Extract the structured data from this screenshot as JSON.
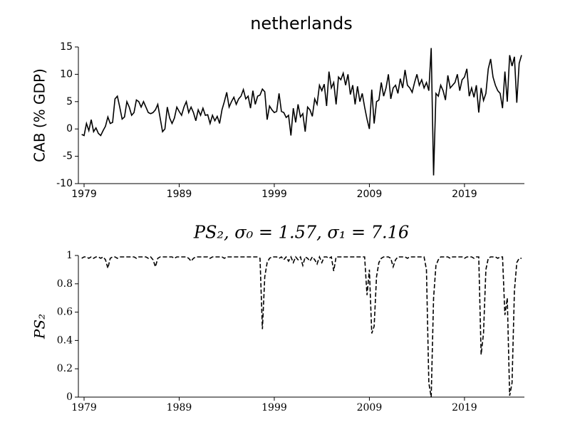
{
  "chart_data": [
    {
      "type": "line",
      "title": "netherlands",
      "y_label": "CAB (% GDP)",
      "xlim": [
        1978.4,
        2025.3
      ],
      "xticks": [
        1979,
        1989,
        1999,
        2009,
        2019
      ],
      "ylim": [
        -10,
        15
      ],
      "yticks": [
        -10,
        -5,
        0,
        5,
        10,
        15
      ],
      "grid": false,
      "x": [
        1978.75,
        1979,
        1979.25,
        1979.5,
        1979.75,
        1980,
        1980.25,
        1980.5,
        1980.75,
        1981,
        1981.25,
        1981.5,
        1981.75,
        1982,
        1982.25,
        1982.5,
        1982.75,
        1983,
        1983.25,
        1983.5,
        1983.75,
        1984,
        1984.25,
        1984.5,
        1984.75,
        1985,
        1985.25,
        1985.5,
        1985.75,
        1986,
        1986.25,
        1986.5,
        1986.75,
        1987,
        1987.25,
        1987.5,
        1987.75,
        1988,
        1988.25,
        1988.5,
        1988.75,
        1989,
        1989.25,
        1989.5,
        1989.75,
        1990,
        1990.25,
        1990.5,
        1990.75,
        1991,
        1991.25,
        1991.5,
        1991.75,
        1992,
        1992.25,
        1992.5,
        1992.75,
        1993,
        1993.25,
        1993.5,
        1993.75,
        1994,
        1994.25,
        1994.5,
        1994.75,
        1995,
        1995.25,
        1995.5,
        1995.75,
        1996,
        1996.25,
        1996.5,
        1996.75,
        1997,
        1997.25,
        1997.5,
        1997.75,
        1998,
        1998.25,
        1998.5,
        1998.75,
        1999,
        1999.25,
        1999.5,
        1999.75,
        2000,
        2000.25,
        2000.5,
        2000.75,
        2001,
        2001.25,
        2001.5,
        2001.75,
        2002,
        2002.25,
        2002.5,
        2002.75,
        2003,
        2003.25,
        2003.5,
        2003.75,
        2004,
        2004.25,
        2004.5,
        2004.75,
        2005,
        2005.25,
        2005.5,
        2005.75,
        2006,
        2006.25,
        2006.5,
        2006.75,
        2007,
        2007.25,
        2007.5,
        2007.75,
        2008,
        2008.25,
        2008.5,
        2008.75,
        2009,
        2009.25,
        2009.5,
        2009.75,
        2010,
        2010.25,
        2010.5,
        2010.75,
        2011,
        2011.25,
        2011.5,
        2011.75,
        2012,
        2012.25,
        2012.5,
        2012.75,
        2013,
        2013.25,
        2013.5,
        2013.75,
        2014,
        2014.25,
        2014.5,
        2014.75,
        2015,
        2015.25,
        2015.5,
        2015.75,
        2016,
        2016.25,
        2016.5,
        2016.75,
        2017,
        2017.25,
        2017.5,
        2017.75,
        2018,
        2018.25,
        2018.5,
        2018.75,
        2019,
        2019.25,
        2019.5,
        2019.75,
        2020,
        2020.25,
        2020.5,
        2020.75,
        2021,
        2021.25,
        2021.5,
        2021.75,
        2022,
        2022.25,
        2022.5,
        2022.75,
        2023,
        2023.25,
        2023.5,
        2023.75,
        2024,
        2024.25,
        2024.5,
        2024.75,
        2025
      ],
      "series": [
        {
          "color": "#000000",
          "linestyle": "solid",
          "values": [
            -1,
            -1.2,
            1,
            -0.3,
            1.7,
            -0.5,
            0.2,
            -0.8,
            -1.2,
            -0.3,
            0.5,
            2.2,
            1,
            1.2,
            5.5,
            6,
            4,
            1.8,
            2.2,
            5,
            4,
            2.5,
            3,
            5.3,
            5,
            4,
            5,
            4,
            3,
            2.8,
            3,
            3.5,
            4.5,
            2,
            -0.5,
            0,
            4,
            2,
            1,
            2,
            4,
            3.2,
            2.5,
            4,
            5,
            3,
            4,
            3,
            1.5,
            3.5,
            2.5,
            3.8,
            2.5,
            2.6,
            1,
            2.5,
            1.5,
            2.3,
            1,
            3.5,
            5,
            6.7,
            4,
            5,
            5.8,
            4.5,
            5.5,
            6,
            7.2,
            5.5,
            6,
            3.8,
            7,
            4.5,
            6,
            6.2,
            7.3,
            6.8,
            1.7,
            4.2,
            3.5,
            3,
            3.2,
            6.5,
            3.2,
            3,
            2.1,
            2.5,
            -1.2,
            3.8,
            1.2,
            4.5,
            2.2,
            2.8,
            -0.5,
            4,
            3.5,
            2.3,
            5.5,
            4.5,
            8,
            7,
            8.2,
            4.2,
            10.5,
            7.5,
            8.5,
            4.5,
            9.5,
            9,
            10.2,
            8,
            10,
            6.3,
            8,
            4.5,
            7.8,
            5,
            6.5,
            4,
            1.8,
            0,
            7.2,
            1,
            5,
            5.3,
            8.5,
            6,
            7.5,
            10,
            5.5,
            7.5,
            8,
            6.5,
            9.2,
            7.5,
            10.8,
            8,
            7.5,
            6.7,
            8.5,
            10,
            8,
            9,
            7.5,
            8.5,
            7,
            14.8,
            -8.5,
            6.5,
            6,
            8,
            7,
            5.3,
            9.8,
            7.5,
            8,
            8.5,
            10,
            7,
            9,
            9.5,
            11,
            6,
            7.5,
            5.8,
            8,
            3,
            7.5,
            5.2,
            6.5,
            11,
            12.8,
            9.5,
            8,
            7,
            6.5,
            3.8,
            10.5,
            5,
            13.5,
            11.5,
            13.2,
            4.8,
            12,
            13.5
          ]
        }
      ]
    },
    {
      "type": "line",
      "title": "PS₂, σ₀ = 1.57, σ₁ = 7.16",
      "y_label": "PS₂",
      "xlim": [
        1978.4,
        2025.3
      ],
      "xticks": [
        1979,
        1989,
        1999,
        2009,
        2019
      ],
      "ylim": [
        0,
        1
      ],
      "yticks": [
        0,
        0.2,
        0.4,
        0.6,
        0.8,
        1
      ],
      "grid": false,
      "x": [
        1978.75,
        1979,
        1979.25,
        1979.5,
        1979.75,
        1980,
        1980.25,
        1980.5,
        1980.75,
        1981,
        1981.25,
        1981.5,
        1981.75,
        1982,
        1982.25,
        1982.5,
        1982.75,
        1983,
        1983.25,
        1983.5,
        1983.75,
        1984,
        1984.25,
        1984.5,
        1984.75,
        1985,
        1985.25,
        1985.5,
        1985.75,
        1986,
        1986.25,
        1986.5,
        1986.75,
        1987,
        1987.25,
        1987.5,
        1987.75,
        1988,
        1988.25,
        1988.5,
        1988.75,
        1989,
        1989.25,
        1989.5,
        1989.75,
        1990,
        1990.25,
        1990.5,
        1990.75,
        1991,
        1991.25,
        1991.5,
        1991.75,
        1992,
        1992.25,
        1992.5,
        1992.75,
        1993,
        1993.25,
        1993.5,
        1993.75,
        1994,
        1994.25,
        1994.5,
        1994.75,
        1995,
        1995.25,
        1995.5,
        1995.75,
        1996,
        1996.25,
        1996.5,
        1996.75,
        1997,
        1997.25,
        1997.5,
        1997.75,
        1998,
        1998.25,
        1998.5,
        1998.75,
        1999,
        1999.25,
        1999.5,
        1999.75,
        2000,
        2000.25,
        2000.5,
        2000.75,
        2001,
        2001.25,
        2001.5,
        2001.75,
        2002,
        2002.25,
        2002.5,
        2002.75,
        2003,
        2003.25,
        2003.5,
        2003.75,
        2004,
        2004.25,
        2004.5,
        2004.75,
        2005,
        2005.25,
        2005.5,
        2005.75,
        2006,
        2006.25,
        2006.5,
        2006.75,
        2007,
        2007.25,
        2007.5,
        2007.75,
        2008,
        2008.25,
        2008.5,
        2008.75,
        2009,
        2009.25,
        2009.5,
        2009.75,
        2010,
        2010.25,
        2010.5,
        2010.75,
        2011,
        2011.25,
        2011.5,
        2011.75,
        2012,
        2012.25,
        2012.5,
        2012.75,
        2013,
        2013.25,
        2013.5,
        2013.75,
        2014,
        2014.25,
        2014.5,
        2014.75,
        2015,
        2015.25,
        2015.5,
        2015.75,
        2016,
        2016.25,
        2016.5,
        2016.75,
        2017,
        2017.25,
        2017.5,
        2017.75,
        2018,
        2018.25,
        2018.5,
        2018.75,
        2019,
        2019.25,
        2019.5,
        2019.75,
        2020,
        2020.25,
        2020.5,
        2020.75,
        2021,
        2021.25,
        2021.5,
        2021.75,
        2022,
        2022.25,
        2022.5,
        2022.75,
        2023,
        2023.25,
        2023.5,
        2023.75,
        2024,
        2024.25,
        2024.5,
        2024.75,
        2025
      ],
      "series": [
        {
          "color": "#000000",
          "linestyle": "dashed",
          "values": [
            0.98,
            0.99,
            0.99,
            0.98,
            0.99,
            0.98,
            0.99,
            0.99,
            0.98,
            0.99,
            0.97,
            0.91,
            0.98,
            0.99,
            0.99,
            0.98,
            0.99,
            0.99,
            0.99,
            0.99,
            0.99,
            0.99,
            0.99,
            0.98,
            0.99,
            0.99,
            0.99,
            0.99,
            0.98,
            0.99,
            0.97,
            0.92,
            0.98,
            0.99,
            0.99,
            0.99,
            0.99,
            0.99,
            0.99,
            0.98,
            0.99,
            0.99,
            0.99,
            0.99,
            0.99,
            0.98,
            0.96,
            0.98,
            0.99,
            0.99,
            0.99,
            0.99,
            0.99,
            0.99,
            0.98,
            0.99,
            0.99,
            0.99,
            0.99,
            0.99,
            0.98,
            0.99,
            0.99,
            0.99,
            0.99,
            0.99,
            0.99,
            0.99,
            0.99,
            0.99,
            0.99,
            0.99,
            0.99,
            0.99,
            0.99,
            0.98,
            0.48,
            0.85,
            0.95,
            0.98,
            0.99,
            0.99,
            0.99,
            0.98,
            0.99,
            0.97,
            0.99,
            0.96,
            0.99,
            0.95,
            0.99,
            0.97,
            0.99,
            0.93,
            0.99,
            0.98,
            0.96,
            0.99,
            0.97,
            0.94,
            0.99,
            0.95,
            0.99,
            0.99,
            0.98,
            0.99,
            0.89,
            0.99,
            0.99,
            0.99,
            0.99,
            0.99,
            0.99,
            0.99,
            0.99,
            0.99,
            0.99,
            0.99,
            0.99,
            0.99,
            0.72,
            0.9,
            0.45,
            0.5,
            0.85,
            0.95,
            0.98,
            0.99,
            0.99,
            0.99,
            0.98,
            0.92,
            0.97,
            0.99,
            0.99,
            0.99,
            0.99,
            0.98,
            0.99,
            0.99,
            0.99,
            0.99,
            0.99,
            0.99,
            0.99,
            0.9,
            0.1,
            0,
            0.7,
            0.93,
            0.97,
            0.99,
            0.99,
            0.99,
            0.99,
            0.98,
            0.99,
            0.99,
            0.99,
            0.99,
            0.99,
            0.98,
            0.99,
            0.99,
            0.99,
            0.98,
            0.99,
            0.99,
            0.3,
            0.45,
            0.9,
            0.98,
            0.99,
            0.99,
            0.99,
            0.98,
            0.99,
            0.99,
            0.58,
            0.7,
            0.01,
            0.1,
            0.75,
            0.95,
            0.98,
            0.98
          ]
        }
      ]
    }
  ]
}
